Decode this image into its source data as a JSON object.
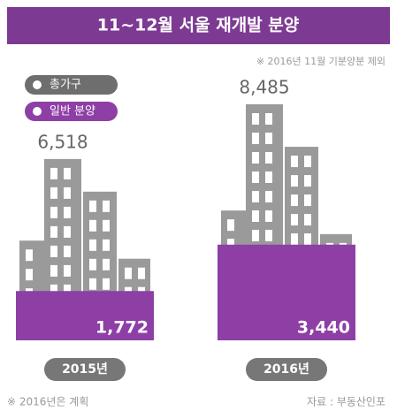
{
  "chart_data": {
    "type": "bar",
    "title": "11~12월 서울 재개발 분양",
    "subtitle": "※ 2016년 11월 기분양분 제외",
    "footnote": "※ 2016년은 계획",
    "source": "자료 : 부동산인포",
    "categories": [
      "2015년",
      "2016년"
    ],
    "series": [
      {
        "name": "총가구",
        "color": "#9a9a9a",
        "values": [
          6518,
          8485
        ],
        "value_labels": [
          "6,518",
          "8,485"
        ]
      },
      {
        "name": "일반 분양",
        "color": "#8e3fa6",
        "values": [
          1772,
          3440
        ],
        "value_labels": [
          "1,772",
          "3,440"
        ]
      }
    ],
    "legend": "top-left"
  }
}
